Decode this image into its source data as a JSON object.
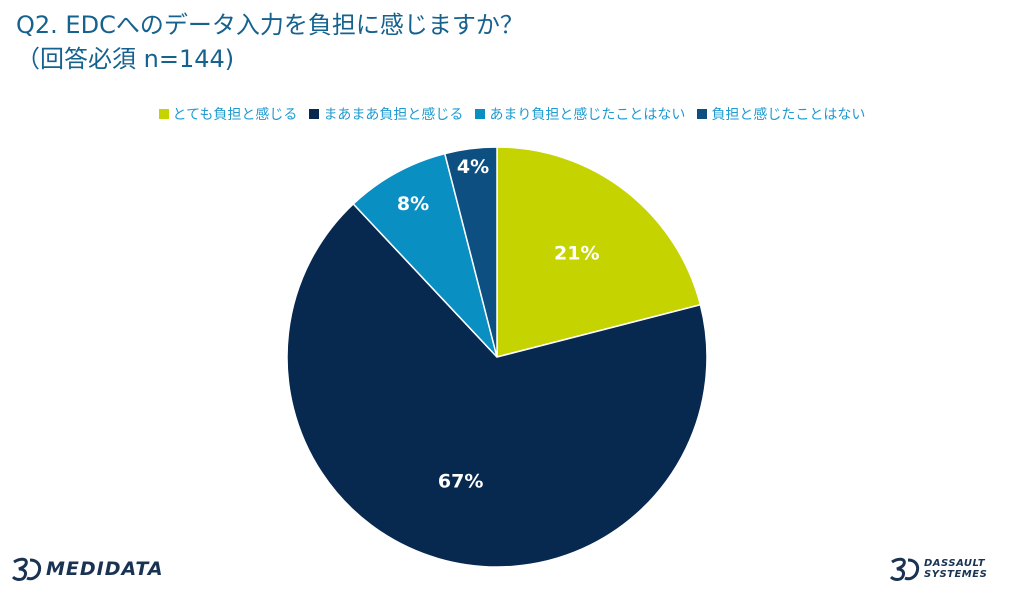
{
  "header": {
    "title_line1": "Q2. EDCへのデータ入力を負担に感じますか？",
    "title_line2": "（回答必須 n=144)"
  },
  "chart_data": {
    "type": "pie",
    "categories": [
      "とても負担と感じる",
      "まあまあ負担と感じる",
      "あまり負担と感じたことはない",
      "負担と感じたことはない"
    ],
    "values": [
      21,
      67,
      8,
      4
    ],
    "labels": [
      "21%",
      "67%",
      "8%",
      "4%"
    ],
    "colors": [
      "#c5d300",
      "#07284f",
      "#0a8fc2",
      "#0c4f80"
    ],
    "legend_position": "top",
    "start_angle": "12 o'clock",
    "direction": "clockwise"
  },
  "logos": {
    "left_text": "MEDIDATA",
    "right_text_line1": "DASSAULT",
    "right_text_line2": "SYSTEMES",
    "logo_color": "#1a3352"
  }
}
